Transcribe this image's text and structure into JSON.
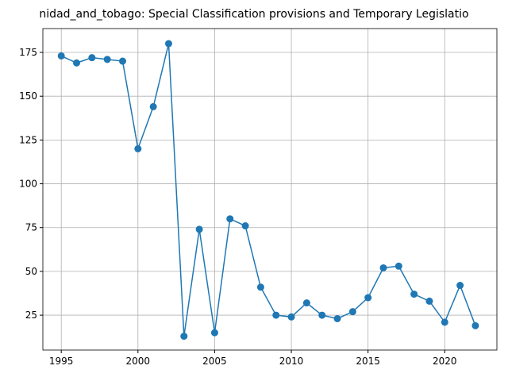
{
  "chart_data": {
    "type": "line",
    "title": "nidad_and_tobago: Special Classification provisions and Temporary Legislatio",
    "x": [
      1995,
      1996,
      1997,
      1998,
      1999,
      2000,
      2001,
      2002,
      2003,
      2004,
      2005,
      2006,
      2007,
      2008,
      2009,
      2010,
      2011,
      2012,
      2013,
      2014,
      2015,
      2016,
      2017,
      2018,
      2019,
      2020,
      2021,
      2022
    ],
    "series": [
      {
        "color": "#1f77b4",
        "values": [
          173,
          169,
          172,
          171,
          170,
          120,
          144,
          180,
          13,
          74,
          15,
          80,
          76,
          41,
          25,
          24,
          32,
          25,
          23,
          27,
          35,
          52,
          53,
          37,
          33,
          21,
          42,
          19
        ]
      }
    ],
    "xlim": [
      1993.8,
      2023.4
    ],
    "ylim": [
      5.1,
      188.6
    ],
    "xticks": [
      1995,
      2000,
      2005,
      2010,
      2015,
      2020
    ],
    "yticks": [
      25,
      50,
      75,
      100,
      125,
      150,
      175
    ],
    "grid": true
  }
}
